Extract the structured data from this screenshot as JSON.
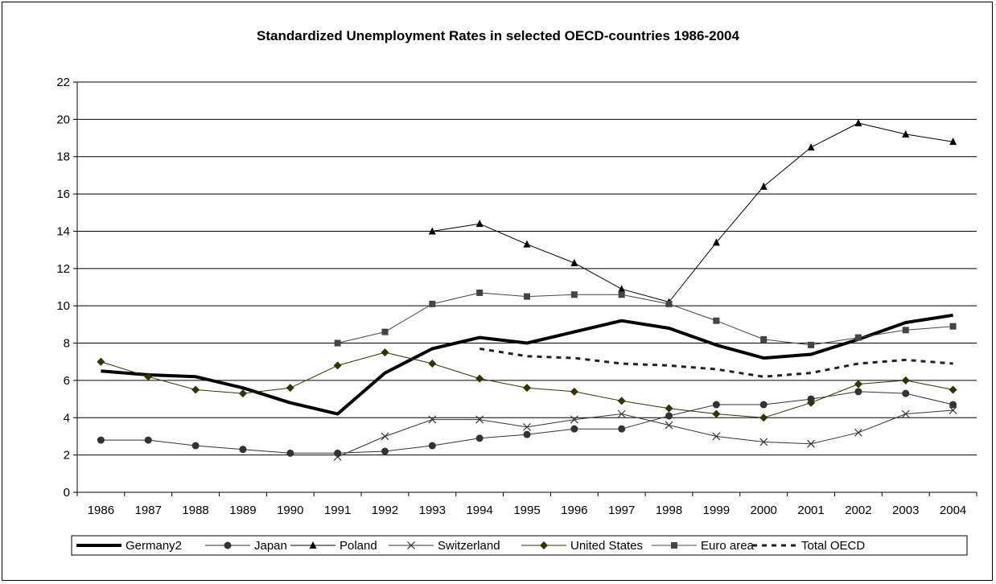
{
  "chart_data": {
    "type": "line",
    "title": "Standardized Unemployment Rates in selected OECD-countries 1986-2004",
    "xlabel": "",
    "ylabel": "",
    "categories": [
      "1986",
      "1987",
      "1988",
      "1989",
      "1990",
      "1991",
      "1992",
      "1993",
      "1994",
      "1995",
      "1996",
      "1997",
      "1998",
      "1999",
      "2000",
      "2001",
      "2002",
      "2003",
      "2004"
    ],
    "ylim": [
      0,
      22
    ],
    "y_ticks": [
      0,
      2,
      4,
      6,
      8,
      10,
      12,
      14,
      16,
      18,
      20,
      22
    ],
    "grid": true,
    "legend_position": "bottom",
    "series": [
      {
        "name": "Germany2",
        "values": [
          6.5,
          6.3,
          6.2,
          5.6,
          4.8,
          4.2,
          6.4,
          7.7,
          8.3,
          8.0,
          8.6,
          9.2,
          8.8,
          7.9,
          7.2,
          7.4,
          8.2,
          9.1,
          9.5
        ],
        "color": "#000000",
        "width": 4,
        "marker": "none",
        "dash": ""
      },
      {
        "name": "Japan",
        "values": [
          2.8,
          2.8,
          2.5,
          2.3,
          2.1,
          2.1,
          2.2,
          2.5,
          2.9,
          3.1,
          3.4,
          3.4,
          4.1,
          4.7,
          4.7,
          5.0,
          5.4,
          5.3,
          4.7
        ],
        "color": "#333333",
        "width": 1,
        "marker": "circle",
        "dash": ""
      },
      {
        "name": "Poland",
        "values": [
          null,
          null,
          null,
          null,
          null,
          null,
          null,
          14.0,
          14.4,
          13.3,
          12.3,
          10.9,
          10.2,
          13.4,
          16.4,
          18.5,
          19.8,
          19.2,
          18.8
        ],
        "color": "#000000",
        "width": 1,
        "marker": "triangle",
        "dash": ""
      },
      {
        "name": "Switzerland",
        "values": [
          null,
          null,
          null,
          null,
          null,
          1.9,
          3.0,
          3.9,
          3.9,
          3.5,
          3.9,
          4.2,
          3.6,
          3.0,
          2.7,
          2.6,
          3.2,
          4.2,
          4.4
        ],
        "color": "#333333",
        "width": 1,
        "marker": "x",
        "dash": ""
      },
      {
        "name": "United States",
        "values": [
          7.0,
          6.2,
          5.5,
          5.3,
          5.6,
          6.8,
          7.5,
          6.9,
          6.1,
          5.6,
          5.4,
          4.9,
          4.5,
          4.2,
          4.0,
          4.8,
          5.8,
          6.0,
          5.5
        ],
        "color": "#333300",
        "width": 1,
        "marker": "diamond",
        "dash": ""
      },
      {
        "name": "Euro area",
        "values": [
          null,
          null,
          null,
          null,
          null,
          8.0,
          8.6,
          10.1,
          10.7,
          10.5,
          10.6,
          10.6,
          10.1,
          9.2,
          8.2,
          7.9,
          8.3,
          8.7,
          8.9
        ],
        "color": "#444444",
        "width": 1,
        "marker": "square",
        "dash": ""
      },
      {
        "name": "Total OECD",
        "values": [
          null,
          null,
          null,
          null,
          null,
          null,
          null,
          null,
          7.7,
          7.3,
          7.2,
          6.9,
          6.8,
          6.6,
          6.2,
          6.4,
          6.9,
          7.1,
          6.9
        ],
        "color": "#222222",
        "width": 3,
        "marker": "none",
        "dash": "6,6"
      }
    ]
  }
}
